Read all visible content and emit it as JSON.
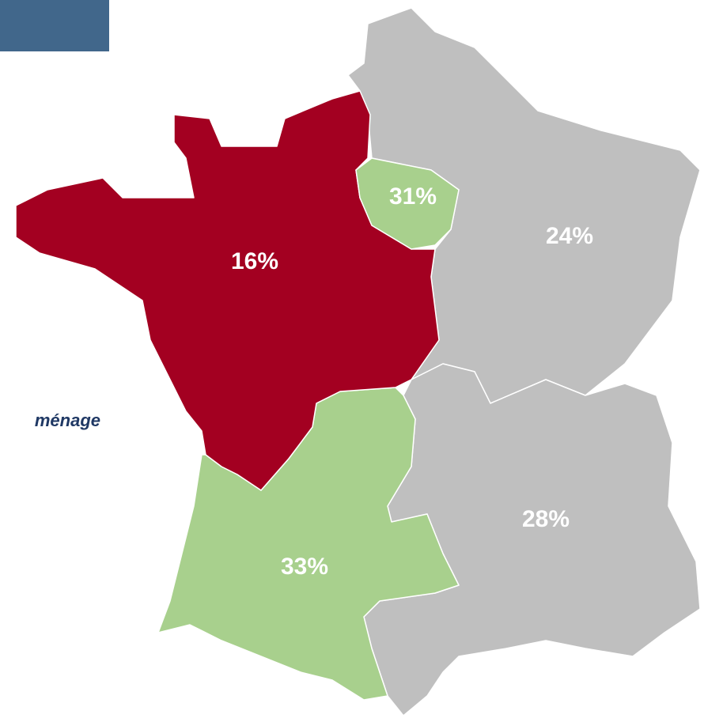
{
  "caption": "ménage",
  "regions": [
    {
      "label": "16%"
    },
    {
      "label": "31%"
    },
    {
      "label": "24%"
    },
    {
      "label": "28%"
    },
    {
      "label": "33%"
    }
  ]
}
